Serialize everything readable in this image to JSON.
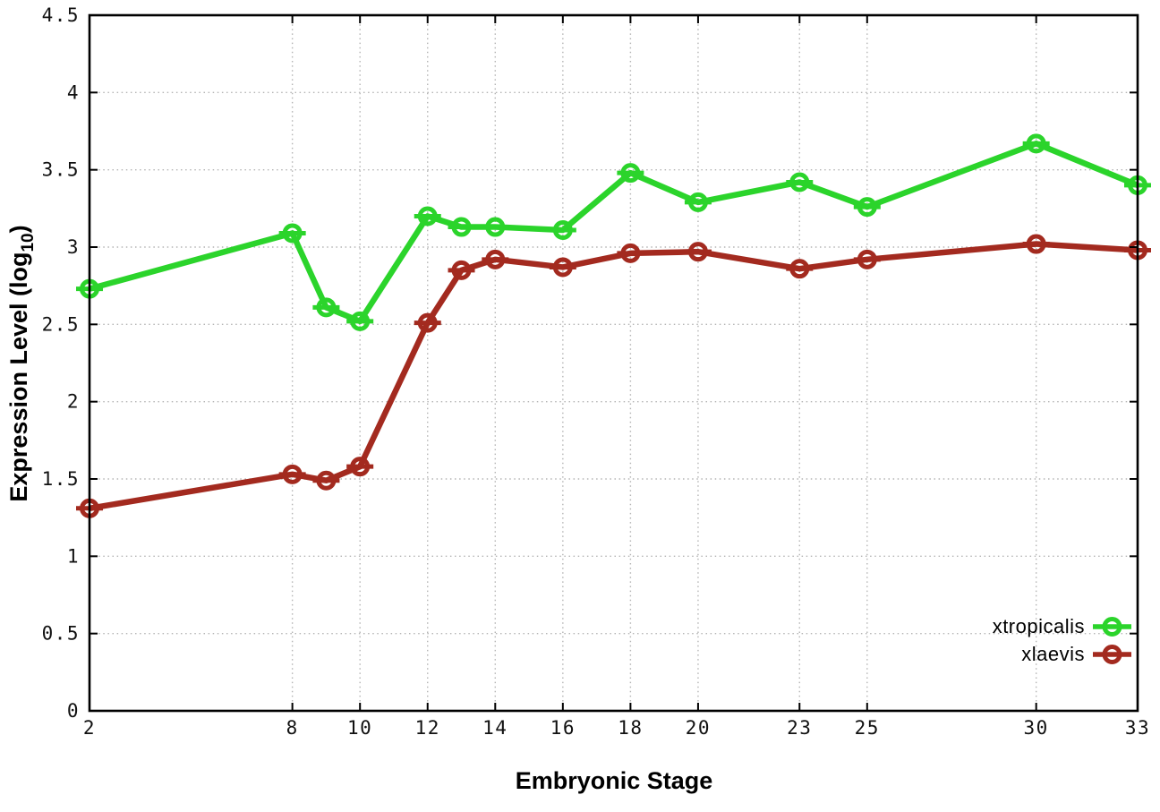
{
  "chart_data": {
    "type": "line",
    "title": "",
    "xlabel": "Embryonic Stage",
    "ylabel": {
      "text": "Expression Level (log10)",
      "main": "Expression Level (log",
      "sub": "10",
      "end": ")"
    },
    "xlim": [
      2,
      33
    ],
    "ylim": [
      0,
      4.5
    ],
    "xticks": [
      2,
      8,
      10,
      12,
      14,
      16,
      18,
      20,
      23,
      25,
      30,
      33
    ],
    "xtick_labels": [
      "2",
      "8",
      "10",
      "12",
      "14",
      "16",
      "18",
      "20",
      "23",
      "25",
      "30",
      "33"
    ],
    "yticks": [
      0,
      0.5,
      1,
      1.5,
      2,
      2.5,
      3,
      3.5,
      4,
      4.5
    ],
    "ytick_labels": [
      "0",
      "0.5",
      "1",
      "1.5",
      "2",
      "2.5",
      "3",
      "3.5",
      "4",
      "4.5"
    ],
    "grid": true,
    "grid_style": "dotted",
    "legend_position": "inside-bottom-right",
    "marker": "open-circle-with-horizontal-bar",
    "x": [
      2,
      8,
      9,
      10,
      12,
      13,
      14,
      16,
      18,
      20,
      23,
      25,
      30,
      33
    ],
    "series": [
      {
        "name": "xtropicalis",
        "color": "#2bd42b",
        "values": [
          2.73,
          3.09,
          2.61,
          2.52,
          3.2,
          3.13,
          3.13,
          3.11,
          3.48,
          3.29,
          3.42,
          3.26,
          3.67,
          3.4
        ]
      },
      {
        "name": "xlaevis",
        "color": "#a32a1f",
        "values": [
          1.31,
          1.53,
          1.49,
          1.58,
          2.51,
          2.85,
          2.92,
          2.87,
          2.96,
          2.97,
          2.86,
          2.92,
          3.02,
          2.98
        ]
      }
    ]
  }
}
